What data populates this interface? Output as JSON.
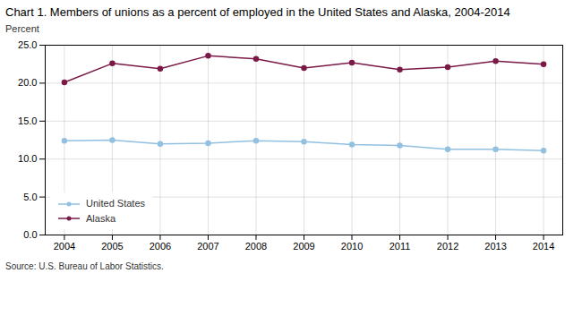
{
  "chart_data": {
    "type": "line",
    "title": "Chart 1. Members of unions as a percent of employed in the United States and Alaska, 2004-2014",
    "ylabel": "Percent",
    "source": "Source: U.S. Bureau of Labor Statistics.",
    "x": [
      2004,
      2005,
      2006,
      2007,
      2008,
      2009,
      2010,
      2011,
      2012,
      2013,
      2014
    ],
    "xlim": [
      2003.6,
      2014.4
    ],
    "xticks": [
      2004,
      2005,
      2006,
      2007,
      2008,
      2009,
      2010,
      2011,
      2012,
      2013,
      2014
    ],
    "ylim": [
      0,
      25.0
    ],
    "yticks": [
      {
        "value": 0.0,
        "label": "0.0"
      },
      {
        "value": 5.0,
        "label": "5.0"
      },
      {
        "value": 10.0,
        "label": "10.0"
      },
      {
        "value": 15.0,
        "label": "15.0"
      },
      {
        "value": 20.0,
        "label": "20.0"
      },
      {
        "value": 25.0,
        "label": "25.0"
      }
    ],
    "grid": true,
    "legend": "lower left",
    "series": [
      {
        "name": "United States",
        "color": "#92c0e0",
        "marker": "circle",
        "values": [
          12.4,
          12.5,
          12.0,
          12.1,
          12.4,
          12.3,
          11.9,
          11.8,
          11.3,
          11.3,
          11.1
        ]
      },
      {
        "name": "Alaska",
        "color": "#7b1a47",
        "marker": "circle",
        "values": [
          20.1,
          22.6,
          21.9,
          23.6,
          23.2,
          22.0,
          22.7,
          21.8,
          22.1,
          22.9,
          22.5
        ]
      }
    ]
  }
}
